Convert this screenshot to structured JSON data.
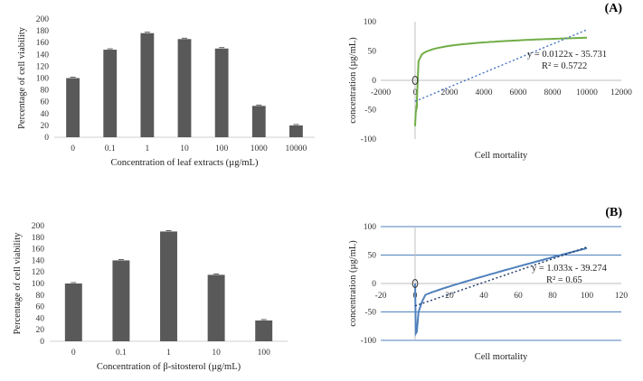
{
  "panel_labels": {
    "a": "(A)",
    "b": "(B)"
  },
  "chart_data": [
    {
      "id": "leaf",
      "type": "bar",
      "categories": [
        "0",
        "0.1",
        "1",
        "10",
        "100",
        "1000",
        "10000"
      ],
      "values": [
        100,
        148,
        176,
        166,
        150,
        53,
        20
      ],
      "xlabel": "Concentration of leaf extracts (µg/mL)",
      "ylabel": "Percentage of cell viability",
      "ylim": [
        0,
        200
      ],
      "yticks": [
        "0",
        "20",
        "40",
        "60",
        "80",
        "100",
        "120",
        "140",
        "160",
        "180",
        "200"
      ],
      "grid": false,
      "color": "#595959"
    },
    {
      "id": "mortA",
      "type": "line",
      "xlabel": "Cell mortality",
      "ylabel": "concentration (µg/mL)",
      "xlim": [
        -2000,
        12000
      ],
      "ylim": [
        -100,
        100
      ],
      "xticks": [
        "-2000",
        "0",
        "2000",
        "4000",
        "6000",
        "8000",
        "10000",
        "12000"
      ],
      "yticks": [
        "-100",
        "-50",
        "0",
        "50",
        "100"
      ],
      "grid": false,
      "series_color": "#70AD47",
      "trend_color": "#4472C4",
      "equation": "y = 0.0122x - 35.731",
      "r2": "R² = 0.5722",
      "trendline": {
        "slope": 0.0122,
        "intercept": -35.731,
        "x": [
          0,
          10000
        ]
      }
    },
    {
      "id": "sito",
      "type": "bar",
      "categories": [
        "0",
        "0.1",
        "1",
        "10",
        "100"
      ],
      "values": [
        100,
        140,
        190,
        115,
        36
      ],
      "xlabel": "Concentration of β-sitosterol (µg/mL)",
      "ylabel": "Percentage of cell viability",
      "ylim": [
        0,
        200
      ],
      "yticks": [
        "0",
        "20",
        "40",
        "60",
        "80",
        "100",
        "120",
        "140",
        "160",
        "180",
        "200"
      ],
      "grid": false,
      "color": "#595959"
    },
    {
      "id": "mortB",
      "type": "line",
      "xlabel": "Cell mortality",
      "ylabel": "concentration (µg/mL)",
      "xlim": [
        -20,
        120
      ],
      "ylim": [
        -100,
        100
      ],
      "xticks": [
        "-20",
        "0",
        "20",
        "40",
        "60",
        "80",
        "100",
        "120"
      ],
      "yticks": [
        "-100",
        "-50",
        "0",
        "50",
        "100"
      ],
      "grid": true,
      "series_color": "#4F81BD",
      "trend_color": "#1F3864",
      "equation": "y = 1.033x - 39.274",
      "r2": "R² = 0.65",
      "trendline": {
        "slope": 1.033,
        "intercept": -39.274,
        "x": [
          0,
          100
        ]
      }
    }
  ]
}
